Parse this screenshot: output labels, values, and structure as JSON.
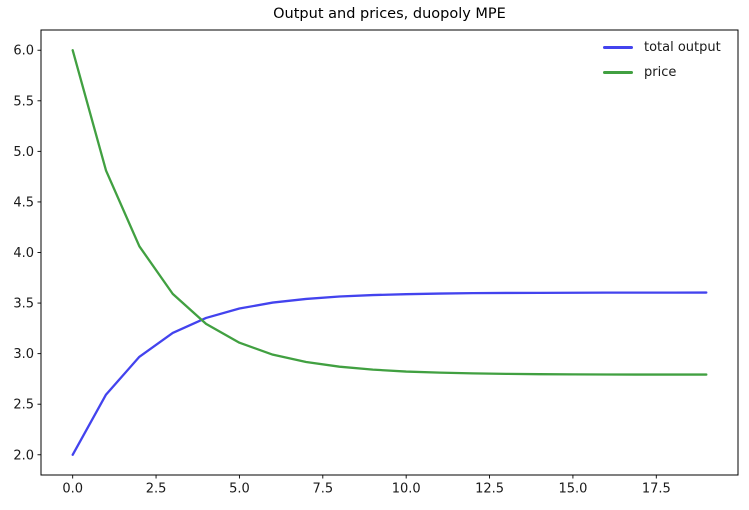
{
  "figure": {
    "background": "#ffffff",
    "frame_color": "#000000",
    "text_color": "#1a1a1a"
  },
  "chart_data": {
    "type": "line",
    "title": "Output and prices, duopoly MPE",
    "xlabel": "",
    "ylabel": "",
    "grid": false,
    "legend_position": "upper right",
    "xlim": [
      -0.95,
      19.95
    ],
    "ylim": [
      1.8,
      6.2
    ],
    "xticks": {
      "values": [
        0,
        2.5,
        5,
        7.5,
        10,
        12.5,
        15,
        17.5
      ],
      "labels": [
        "0.0",
        "2.5",
        "5.0",
        "7.5",
        "10.0",
        "12.5",
        "15.0",
        "17.5"
      ]
    },
    "yticks": {
      "values": [
        2.0,
        2.5,
        3.0,
        3.5,
        4.0,
        4.5,
        5.0,
        5.5,
        6.0
      ],
      "labels": [
        "2.0",
        "2.5",
        "3.0",
        "3.5",
        "4.0",
        "4.5",
        "5.0",
        "5.5",
        "6.0"
      ]
    },
    "x": [
      0,
      1,
      2,
      3,
      4,
      5,
      6,
      7,
      8,
      9,
      10,
      11,
      12,
      13,
      14,
      15,
      16,
      17,
      18,
      19
    ],
    "series": [
      {
        "name": "total output",
        "color": "#4343ee",
        "values": [
          2.0,
          2.595,
          2.969,
          3.205,
          3.353,
          3.446,
          3.505,
          3.541,
          3.565,
          3.579,
          3.588,
          3.594,
          3.598,
          3.6,
          3.601,
          3.602,
          3.603,
          3.603,
          3.603,
          3.604
        ]
      },
      {
        "name": "price",
        "color": "#41a041",
        "values": [
          6.0,
          4.81,
          4.061,
          3.591,
          3.294,
          3.108,
          2.99,
          2.917,
          2.871,
          2.842,
          2.823,
          2.812,
          2.805,
          2.8,
          2.797,
          2.795,
          2.794,
          2.793,
          2.793,
          2.793
        ]
      }
    ]
  }
}
